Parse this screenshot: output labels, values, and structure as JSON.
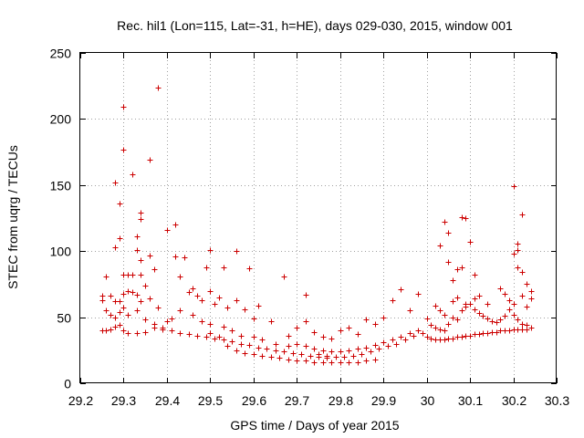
{
  "chart_data": {
    "type": "scatter",
    "title": "Rec. hil1 (Lon=115, Lat=-31, h=HE), days 029-030, 2015, window 001",
    "xlabel": "GPS time / Days of year 2015",
    "ylabel": "STEC from uqrg / TECUs",
    "xlim": [
      29.2,
      30.3
    ],
    "ylim": [
      0,
      250
    ],
    "x_ticks": [
      29.2,
      29.3,
      29.4,
      29.5,
      29.6,
      29.7,
      29.8,
      29.9,
      30.0,
      30.1,
      30.2,
      30.3
    ],
    "x_tick_labels": [
      "29.2",
      "29.3",
      "29.4",
      "29.5",
      "29.6",
      "29.7",
      "29.8",
      "29.9",
      "30",
      "30.1",
      "30.2",
      "30.3"
    ],
    "y_ticks": [
      0,
      50,
      100,
      150,
      200,
      250
    ],
    "y_tick_labels": [
      "0",
      "50",
      "100",
      "150",
      "200",
      "250"
    ],
    "grid": true,
    "marker": "+",
    "color": "#cc0000",
    "series": [
      {
        "name": "STEC",
        "points": [
          [
            29.28,
            152
          ],
          [
            29.3,
            209
          ],
          [
            29.3,
            177
          ],
          [
            29.32,
            158
          ],
          [
            29.29,
            136
          ],
          [
            29.29,
            110
          ],
          [
            29.28,
            103
          ],
          [
            29.34,
            129
          ],
          [
            29.34,
            124
          ],
          [
            29.36,
            169
          ],
          [
            29.38,
            224
          ],
          [
            29.42,
            120
          ],
          [
            29.4,
            116
          ],
          [
            29.36,
            97
          ],
          [
            29.42,
            96
          ],
          [
            29.44,
            95
          ],
          [
            29.33,
            111
          ],
          [
            29.33,
            101
          ],
          [
            29.34,
            93
          ],
          [
            29.31,
            82
          ],
          [
            29.3,
            82
          ],
          [
            29.32,
            82
          ],
          [
            29.34,
            82
          ],
          [
            29.37,
            86
          ],
          [
            29.43,
            81
          ],
          [
            29.46,
            72
          ],
          [
            29.49,
            88
          ],
          [
            29.5,
            101
          ],
          [
            29.53,
            88
          ],
          [
            29.56,
            100
          ],
          [
            29.59,
            87
          ],
          [
            29.67,
            81
          ],
          [
            29.61,
            59
          ],
          [
            29.64,
            47
          ],
          [
            29.25,
            66
          ],
          [
            29.25,
            63
          ],
          [
            29.26,
            81
          ],
          [
            29.27,
            66
          ],
          [
            29.28,
            62
          ],
          [
            29.29,
            62
          ],
          [
            29.3,
            68
          ],
          [
            29.31,
            70
          ],
          [
            29.32,
            69
          ],
          [
            29.33,
            67
          ],
          [
            29.34,
            62
          ],
          [
            29.35,
            74
          ],
          [
            29.36,
            64
          ],
          [
            29.38,
            57
          ],
          [
            29.4,
            47
          ],
          [
            29.45,
            69
          ],
          [
            29.47,
            66
          ],
          [
            29.48,
            63
          ],
          [
            29.5,
            70
          ],
          [
            29.51,
            60
          ],
          [
            29.52,
            65
          ],
          [
            29.54,
            57
          ],
          [
            29.56,
            63
          ],
          [
            29.58,
            56
          ],
          [
            29.6,
            49
          ],
          [
            29.26,
            55
          ],
          [
            29.27,
            52
          ],
          [
            29.28,
            50
          ],
          [
            29.29,
            54
          ],
          [
            29.3,
            57
          ],
          [
            29.31,
            52
          ],
          [
            29.33,
            55
          ],
          [
            29.35,
            48
          ],
          [
            29.37,
            45
          ],
          [
            29.39,
            42
          ],
          [
            29.41,
            49
          ],
          [
            29.43,
            55
          ],
          [
            29.46,
            52
          ],
          [
            29.48,
            47
          ],
          [
            29.5,
            45
          ],
          [
            29.53,
            43
          ],
          [
            29.55,
            40
          ],
          [
            29.57,
            36
          ],
          [
            29.6,
            35
          ],
          [
            29.62,
            33
          ],
          [
            29.65,
            30
          ],
          [
            29.68,
            28
          ],
          [
            29.25,
            40
          ],
          [
            29.26,
            40
          ],
          [
            29.27,
            41
          ],
          [
            29.28,
            43
          ],
          [
            29.29,
            44
          ],
          [
            29.3,
            40
          ],
          [
            29.31,
            38
          ],
          [
            29.33,
            38
          ],
          [
            29.35,
            39
          ],
          [
            29.37,
            42
          ],
          [
            29.39,
            41
          ],
          [
            29.41,
            40
          ],
          [
            29.43,
            38
          ],
          [
            29.45,
            37
          ],
          [
            29.47,
            36
          ],
          [
            29.49,
            35
          ],
          [
            29.51,
            34
          ],
          [
            29.53,
            33
          ],
          [
            29.55,
            32
          ],
          [
            29.57,
            30
          ],
          [
            29.59,
            29
          ],
          [
            29.61,
            27
          ],
          [
            29.63,
            26
          ],
          [
            29.65,
            25
          ],
          [
            29.67,
            24
          ],
          [
            29.69,
            23
          ],
          [
            29.71,
            22
          ],
          [
            29.73,
            21
          ],
          [
            29.75,
            20
          ],
          [
            29.77,
            19
          ],
          [
            29.5,
            38
          ],
          [
            29.52,
            35
          ],
          [
            29.54,
            28
          ],
          [
            29.56,
            25
          ],
          [
            29.58,
            23
          ],
          [
            29.6,
            22
          ],
          [
            29.62,
            21
          ],
          [
            29.64,
            20
          ],
          [
            29.66,
            19
          ],
          [
            29.68,
            18
          ],
          [
            29.7,
            17
          ],
          [
            29.72,
            17
          ],
          [
            29.74,
            16
          ],
          [
            29.76,
            16
          ],
          [
            29.78,
            16
          ],
          [
            29.8,
            16
          ],
          [
            29.82,
            16
          ],
          [
            29.84,
            16
          ],
          [
            29.86,
            17
          ],
          [
            29.88,
            18
          ],
          [
            29.7,
            30
          ],
          [
            29.72,
            28
          ],
          [
            29.74,
            26
          ],
          [
            29.76,
            25
          ],
          [
            29.78,
            24
          ],
          [
            29.8,
            24
          ],
          [
            29.82,
            25
          ],
          [
            29.84,
            26
          ],
          [
            29.86,
            27
          ],
          [
            29.88,
            29
          ],
          [
            29.9,
            31
          ],
          [
            29.92,
            33
          ],
          [
            29.94,
            35
          ],
          [
            29.96,
            38
          ],
          [
            29.98,
            40
          ],
          [
            29.68,
            36
          ],
          [
            29.7,
            42
          ],
          [
            29.72,
            67
          ],
          [
            29.72,
            47
          ],
          [
            29.74,
            39
          ],
          [
            29.76,
            35
          ],
          [
            29.78,
            34
          ],
          [
            29.8,
            40
          ],
          [
            29.82,
            42
          ],
          [
            29.84,
            37
          ],
          [
            29.86,
            48
          ],
          [
            29.88,
            45
          ],
          [
            29.9,
            50
          ],
          [
            29.92,
            63
          ],
          [
            29.94,
            71
          ],
          [
            29.96,
            55
          ],
          [
            29.98,
            68
          ],
          [
            30.0,
            49
          ],
          [
            29.75,
            22
          ],
          [
            29.77,
            21
          ],
          [
            29.79,
            20
          ],
          [
            29.81,
            20
          ],
          [
            29.83,
            21
          ],
          [
            29.85,
            22
          ],
          [
            29.87,
            24
          ],
          [
            29.89,
            26
          ],
          [
            29.91,
            28
          ],
          [
            29.93,
            30
          ],
          [
            29.95,
            33
          ],
          [
            29.97,
            36
          ],
          [
            29.99,
            38
          ],
          [
            30.03,
            104
          ],
          [
            30.04,
            122
          ],
          [
            30.05,
            114
          ],
          [
            30.08,
            126
          ],
          [
            30.09,
            125
          ],
          [
            30.1,
            107
          ],
          [
            30.11,
            82
          ],
          [
            30.2,
            149
          ],
          [
            30.21,
            101
          ],
          [
            30.21,
            106
          ],
          [
            30.22,
            128
          ],
          [
            30.2,
            98
          ],
          [
            30.21,
            88
          ],
          [
            30.22,
            84
          ],
          [
            30.23,
            75
          ],
          [
            30.24,
            70
          ],
          [
            30.24,
            64
          ],
          [
            30.05,
            92
          ],
          [
            30.06,
            78
          ],
          [
            30.07,
            86
          ],
          [
            30.08,
            88
          ],
          [
            30.0,
            35
          ],
          [
            30.01,
            34
          ],
          [
            30.02,
            33
          ],
          [
            30.03,
            33
          ],
          [
            30.04,
            33
          ],
          [
            30.05,
            34
          ],
          [
            30.06,
            34
          ],
          [
            30.07,
            35
          ],
          [
            30.08,
            35
          ],
          [
            30.09,
            36
          ],
          [
            30.1,
            36
          ],
          [
            30.11,
            37
          ],
          [
            30.12,
            37
          ],
          [
            30.13,
            38
          ],
          [
            30.14,
            38
          ],
          [
            30.15,
            39
          ],
          [
            30.16,
            39
          ],
          [
            30.17,
            40
          ],
          [
            30.18,
            40
          ],
          [
            30.19,
            40
          ],
          [
            30.2,
            41
          ],
          [
            30.21,
            41
          ],
          [
            30.22,
            41
          ],
          [
            30.23,
            41
          ],
          [
            30.24,
            42
          ],
          [
            30.01,
            44
          ],
          [
            30.02,
            42
          ],
          [
            30.03,
            41
          ],
          [
            30.04,
            40
          ],
          [
            30.05,
            45
          ],
          [
            30.06,
            50
          ],
          [
            30.07,
            48
          ],
          [
            30.08,
            55
          ],
          [
            30.09,
            58
          ],
          [
            30.1,
            60
          ],
          [
            30.11,
            56
          ],
          [
            30.12,
            53
          ],
          [
            30.13,
            51
          ],
          [
            30.14,
            49
          ],
          [
            30.15,
            47
          ],
          [
            30.16,
            46
          ],
          [
            30.17,
            48
          ],
          [
            30.18,
            51
          ],
          [
            30.19,
            56
          ],
          [
            30.2,
            52
          ],
          [
            30.21,
            48
          ],
          [
            30.22,
            45
          ],
          [
            30.23,
            44
          ],
          [
            30.02,
            59
          ],
          [
            30.03,
            55
          ],
          [
            30.04,
            52
          ],
          [
            30.06,
            62
          ],
          [
            30.07,
            65
          ],
          [
            30.09,
            60
          ],
          [
            30.11,
            64
          ],
          [
            30.12,
            66
          ],
          [
            30.14,
            60
          ],
          [
            30.17,
            72
          ],
          [
            30.18,
            68
          ],
          [
            30.19,
            63
          ],
          [
            30.2,
            60
          ],
          [
            30.22,
            66
          ],
          [
            30.23,
            58
          ]
        ]
      }
    ]
  }
}
